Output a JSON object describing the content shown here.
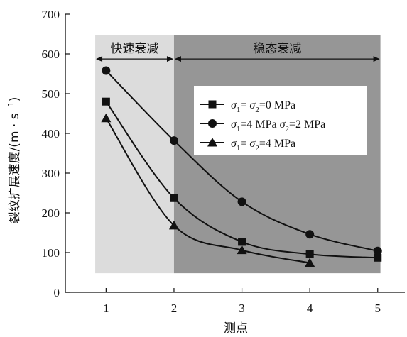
{
  "chart_data": {
    "type": "line",
    "title": "",
    "xlabel": "测点",
    "ylabel": "裂纹扩展速度/(m · s⁻¹)",
    "ylabel_main": "裂纹扩展速度/(m · s",
    "ylabel_sup": "−1",
    "ylabel_end": ")",
    "x": [
      1,
      2,
      3,
      4,
      5
    ],
    "xticks": [
      "1",
      "2",
      "3",
      "4",
      "5"
    ],
    "yticks": [
      "0",
      "100",
      "200",
      "300",
      "400",
      "500",
      "600",
      "700"
    ],
    "xlim": [
      0.4,
      5.4
    ],
    "ylim": [
      0,
      700
    ],
    "grid": false,
    "legend_position": "center-right",
    "regions": [
      {
        "label": "快速衰减",
        "from": 0.84,
        "to": 2.0,
        "color": "#dcdcdc"
      },
      {
        "label": "稳态衰减",
        "from": 2.0,
        "to": 5.04,
        "color": "#969696"
      }
    ],
    "region_bottom": 48,
    "region_top": 648,
    "series": [
      {
        "name": "σ1= σ2=0 MPa",
        "marker": "square",
        "x": [
          1,
          2,
          3,
          4,
          5
        ],
        "values": [
          480,
          237,
          127,
          96,
          87
        ]
      },
      {
        "name": "σ1=4 MPa σ2=2 MPa",
        "marker": "circle",
        "x": [
          1,
          2,
          3,
          4,
          5
        ],
        "values": [
          558,
          382,
          228,
          146,
          104
        ]
      },
      {
        "name": "σ1= σ2=4 MPa",
        "marker": "triangle",
        "x": [
          1,
          2,
          3,
          4
        ],
        "values": [
          438,
          168,
          106,
          74
        ]
      }
    ],
    "legend": [
      {
        "s1": "σ",
        "sub1": "1",
        "mid": "= σ",
        "sub2": "2",
        "rest": "=0 MPa"
      },
      {
        "s1": "σ",
        "sub1": "1",
        "mid": "=4 MPa  σ",
        "sub2": "2",
        "rest": "=2 MPa"
      },
      {
        "s1": "σ",
        "sub1": "1",
        "mid": "= σ",
        "sub2": "2",
        "rest": "=4 MPa"
      }
    ],
    "colors": {
      "line": "#111111",
      "fast_region": "#dcdcdc",
      "steady_region": "#969696",
      "legend_bg": "#ffffff"
    }
  }
}
